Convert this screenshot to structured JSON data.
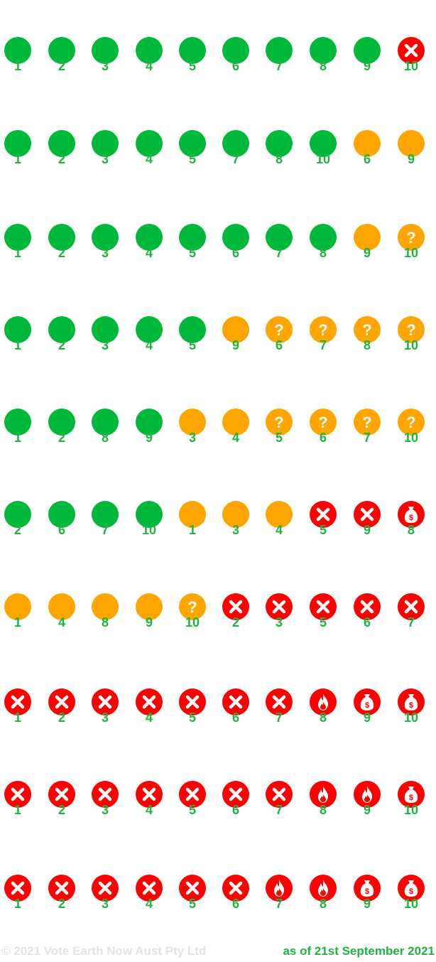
{
  "colors": {
    "green": "#00b839",
    "orange": "#ffa500",
    "red": "#ff0000",
    "number": "#1db53f",
    "footer_muted": "#e3e3e3"
  },
  "legend_icons": {
    "green": "green-dot",
    "orange": "orange-dot",
    "unknown": "question-icon",
    "no": "x-icon",
    "fire": "fire-icon",
    "money": "money-bag-icon"
  },
  "rows": [
    {
      "items": [
        {
          "n": "1",
          "s": "green"
        },
        {
          "n": "2",
          "s": "green"
        },
        {
          "n": "3",
          "s": "green"
        },
        {
          "n": "4",
          "s": "green"
        },
        {
          "n": "5",
          "s": "green"
        },
        {
          "n": "6",
          "s": "green"
        },
        {
          "n": "7",
          "s": "green"
        },
        {
          "n": "8",
          "s": "green"
        },
        {
          "n": "9",
          "s": "green"
        },
        {
          "n": "10",
          "s": "no"
        }
      ]
    },
    {
      "items": [
        {
          "n": "1",
          "s": "green"
        },
        {
          "n": "2",
          "s": "green"
        },
        {
          "n": "3",
          "s": "green"
        },
        {
          "n": "4",
          "s": "green"
        },
        {
          "n": "5",
          "s": "green"
        },
        {
          "n": "7",
          "s": "green"
        },
        {
          "n": "8",
          "s": "green"
        },
        {
          "n": "10",
          "s": "green"
        },
        {
          "n": "6",
          "s": "orange"
        },
        {
          "n": "9",
          "s": "orange"
        }
      ]
    },
    {
      "items": [
        {
          "n": "1",
          "s": "green"
        },
        {
          "n": "2",
          "s": "green"
        },
        {
          "n": "3",
          "s": "green"
        },
        {
          "n": "4",
          "s": "green"
        },
        {
          "n": "5",
          "s": "green"
        },
        {
          "n": "6",
          "s": "green"
        },
        {
          "n": "7",
          "s": "green"
        },
        {
          "n": "8",
          "s": "green"
        },
        {
          "n": "9",
          "s": "orange"
        },
        {
          "n": "10",
          "s": "unknown"
        }
      ]
    },
    {
      "items": [
        {
          "n": "1",
          "s": "green"
        },
        {
          "n": "2",
          "s": "green"
        },
        {
          "n": "3",
          "s": "green"
        },
        {
          "n": "4",
          "s": "green"
        },
        {
          "n": "5",
          "s": "green"
        },
        {
          "n": "9",
          "s": "orange"
        },
        {
          "n": "6",
          "s": "unknown"
        },
        {
          "n": "7",
          "s": "unknown"
        },
        {
          "n": "8",
          "s": "unknown"
        },
        {
          "n": "10",
          "s": "unknown"
        }
      ]
    },
    {
      "items": [
        {
          "n": "1",
          "s": "green"
        },
        {
          "n": "2",
          "s": "green"
        },
        {
          "n": "8",
          "s": "green"
        },
        {
          "n": "9",
          "s": "green"
        },
        {
          "n": "3",
          "s": "orange"
        },
        {
          "n": "4",
          "s": "orange"
        },
        {
          "n": "5",
          "s": "unknown"
        },
        {
          "n": "6",
          "s": "unknown"
        },
        {
          "n": "7",
          "s": "unknown"
        },
        {
          "n": "10",
          "s": "unknown"
        }
      ]
    },
    {
      "items": [
        {
          "n": "2",
          "s": "green"
        },
        {
          "n": "6",
          "s": "green"
        },
        {
          "n": "7",
          "s": "green"
        },
        {
          "n": "10",
          "s": "green"
        },
        {
          "n": "1",
          "s": "orange"
        },
        {
          "n": "3",
          "s": "orange"
        },
        {
          "n": "4",
          "s": "orange"
        },
        {
          "n": "5",
          "s": "no"
        },
        {
          "n": "9",
          "s": "no"
        },
        {
          "n": "8",
          "s": "money"
        }
      ]
    },
    {
      "items": [
        {
          "n": "1",
          "s": "orange"
        },
        {
          "n": "4",
          "s": "orange"
        },
        {
          "n": "8",
          "s": "orange"
        },
        {
          "n": "9",
          "s": "orange"
        },
        {
          "n": "10",
          "s": "unknown"
        },
        {
          "n": "2",
          "s": "no"
        },
        {
          "n": "3",
          "s": "no"
        },
        {
          "n": "5",
          "s": "no"
        },
        {
          "n": "6",
          "s": "no"
        },
        {
          "n": "7",
          "s": "no"
        }
      ]
    },
    {
      "items": [
        {
          "n": "1",
          "s": "no"
        },
        {
          "n": "2",
          "s": "no"
        },
        {
          "n": "3",
          "s": "no"
        },
        {
          "n": "4",
          "s": "no"
        },
        {
          "n": "5",
          "s": "no"
        },
        {
          "n": "6",
          "s": "no"
        },
        {
          "n": "7",
          "s": "no"
        },
        {
          "n": "8",
          "s": "fire"
        },
        {
          "n": "9",
          "s": "money"
        },
        {
          "n": "10",
          "s": "money"
        }
      ]
    },
    {
      "items": [
        {
          "n": "1",
          "s": "no"
        },
        {
          "n": "2",
          "s": "no"
        },
        {
          "n": "3",
          "s": "no"
        },
        {
          "n": "4",
          "s": "no"
        },
        {
          "n": "5",
          "s": "no"
        },
        {
          "n": "6",
          "s": "no"
        },
        {
          "n": "7",
          "s": "no"
        },
        {
          "n": "8",
          "s": "fire"
        },
        {
          "n": "9",
          "s": "fire"
        },
        {
          "n": "10",
          "s": "money"
        }
      ]
    },
    {
      "items": [
        {
          "n": "1",
          "s": "no"
        },
        {
          "n": "2",
          "s": "no"
        },
        {
          "n": "3",
          "s": "no"
        },
        {
          "n": "4",
          "s": "no"
        },
        {
          "n": "5",
          "s": "no"
        },
        {
          "n": "6",
          "s": "no"
        },
        {
          "n": "7",
          "s": "fire"
        },
        {
          "n": "8",
          "s": "fire"
        },
        {
          "n": "9",
          "s": "money"
        },
        {
          "n": "10",
          "s": "money"
        }
      ]
    }
  ],
  "footer": {
    "copyright": "© 2021 Vote Earth Now Aust Pty Ltd",
    "as_of": "as of 21st September 2021"
  }
}
